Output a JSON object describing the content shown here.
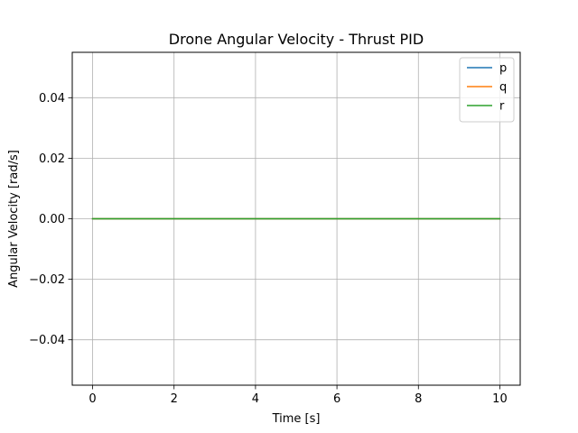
{
  "chart_data": {
    "type": "line",
    "title": "Drone Angular Velocity - Thrust PID",
    "xlabel": "Time [s]",
    "ylabel": "Angular Velocity [rad/s]",
    "xlim": [
      -0.5,
      10.5
    ],
    "ylim": [
      -0.055,
      0.055
    ],
    "xticks": [
      0,
      2,
      4,
      6,
      8,
      10
    ],
    "xtick_labels": [
      "0",
      "2",
      "4",
      "6",
      "8",
      "10"
    ],
    "yticks": [
      -0.04,
      -0.02,
      0.0,
      0.02,
      0.04
    ],
    "ytick_labels": [
      "−0.04",
      "−0.02",
      "0.00",
      "0.02",
      "0.04"
    ],
    "grid": true,
    "legend_position": "top-right",
    "series": [
      {
        "name": "p",
        "color": "#1f77b4",
        "x": [
          0,
          10
        ],
        "y": [
          0,
          0
        ]
      },
      {
        "name": "q",
        "color": "#ff7f0e",
        "x": [
          0,
          10
        ],
        "y": [
          0,
          0
        ]
      },
      {
        "name": "r",
        "color": "#2ca02c",
        "x": [
          0,
          10
        ],
        "y": [
          0,
          0
        ]
      }
    ]
  }
}
